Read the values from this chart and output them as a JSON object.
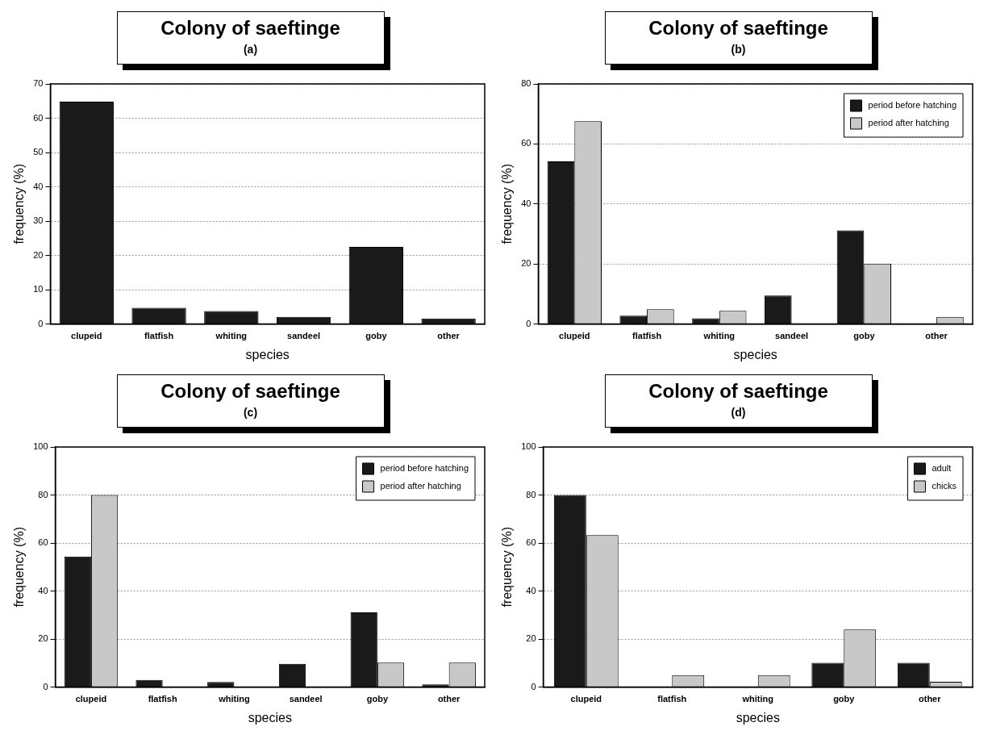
{
  "chart_data": [
    {
      "type": "bar",
      "title": "Colony of saeftinge",
      "subtitle": "(a)",
      "xlabel": "species",
      "ylabel": "frequency (%)",
      "categories": [
        "clupeid",
        "flatfish",
        "whiting",
        "sandeel",
        "goby",
        "other"
      ],
      "values": [
        64.8,
        4.7,
        3.8,
        2.1,
        22.5,
        1.6
      ],
      "color": "#1a1a1a",
      "ylim": [
        0,
        70
      ],
      "yticks": [
        0,
        10,
        20,
        30,
        40,
        50,
        60,
        70
      ],
      "grid": "y"
    },
    {
      "type": "bar",
      "title": "Colony of saeftinge",
      "subtitle": "(b)",
      "xlabel": "species",
      "ylabel": "frequency (%)",
      "categories": [
        "clupeid",
        "flatfish",
        "whiting",
        "sandeel",
        "goby",
        "other"
      ],
      "series": [
        {
          "name": "period before hatching",
          "color": "#1a1a1a",
          "values": [
            54.2,
            2.8,
            1.9,
            9.5,
            31.2,
            0
          ]
        },
        {
          "name": "period after hatching",
          "color": "#c8c8c8",
          "values": [
            67.6,
            4.9,
            4.4,
            0,
            20.1,
            2.4
          ]
        }
      ],
      "ylim": [
        0,
        80
      ],
      "yticks": [
        0,
        20,
        40,
        60,
        80
      ],
      "grid": "y",
      "legend": "top right"
    },
    {
      "type": "bar",
      "title": "Colony of saeftinge",
      "subtitle": "(c)",
      "xlabel": "species",
      "ylabel": "frequency (%)",
      "categories": [
        "clupeid",
        "flatfish",
        "whiting",
        "sandeel",
        "goby",
        "other"
      ],
      "series": [
        {
          "name": "period before hatching",
          "color": "#1a1a1a",
          "values": [
            54.4,
            3.0,
            2.1,
            9.7,
            31.1,
            1.1
          ]
        },
        {
          "name": "period after hatching",
          "color": "#c8c8c8",
          "values": [
            80,
            0,
            0,
            0,
            10.2,
            10.2
          ]
        }
      ],
      "ylim": [
        0,
        100
      ],
      "yticks": [
        0,
        20,
        40,
        60,
        80,
        100
      ],
      "grid": "y",
      "legend": "top right"
    },
    {
      "type": "bar",
      "title": "Colony of saeftinge",
      "subtitle": "(d)",
      "xlabel": "species",
      "ylabel": "frequency (%)",
      "categories": [
        "clupeid",
        "flatfish",
        "whiting",
        "goby",
        "other"
      ],
      "series": [
        {
          "name": "adult",
          "color": "#1a1a1a",
          "values": [
            80,
            0,
            0,
            10.1,
            10.1
          ]
        },
        {
          "name": "chicks",
          "color": "#c8c8c8",
          "values": [
            63.3,
            5.0,
            5.0,
            24.0,
            2.2
          ]
        }
      ],
      "ylim": [
        0,
        100
      ],
      "yticks": [
        0,
        20,
        40,
        60,
        80,
        100
      ],
      "grid": "y",
      "legend": "top right"
    }
  ]
}
